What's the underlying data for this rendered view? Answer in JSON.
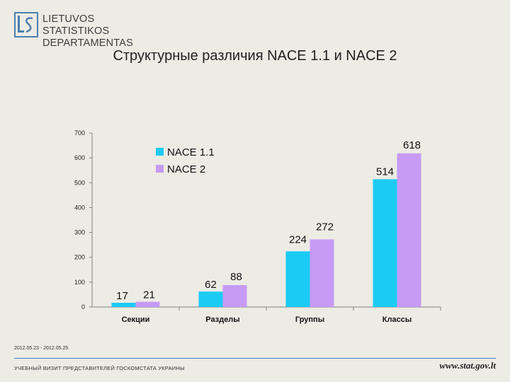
{
  "header": {
    "org_line1": "LIETUVOS STATISTIKOS",
    "org_line2": "DEPARTAMENTAS",
    "logo_icon": "ls-monogram-icon"
  },
  "slide_title": "Структурные различия NACE 1.1 и NACE 2",
  "chart_data": {
    "type": "bar",
    "title": "",
    "xlabel": "",
    "ylabel": "",
    "categories": [
      "Секции",
      "Разделы",
      "Группы",
      "Классы"
    ],
    "series": [
      {
        "name": "NACE 1.1",
        "values": [
          17,
          62,
          224,
          514
        ],
        "color": "#1ccbf3"
      },
      {
        "name": "NACE 2",
        "values": [
          21,
          88,
          272,
          618
        ],
        "color": "#c79af5"
      }
    ],
    "ylim": [
      0,
      700
    ],
    "yticks": [
      0,
      100,
      200,
      300,
      400,
      500,
      600,
      700
    ],
    "grid": false,
    "legend": "top-left",
    "data_labels": true
  },
  "footer": {
    "date_range": "2012.05.23 - 2012.05.25",
    "event": "УЧЕБНЫЙ ВИЗИТ ПРЕДСТАВИТЕЛЕЙ ГОСКОМСТАТА УКРАИНЫ",
    "website": "www.stat.gov.lt"
  },
  "colors": {
    "background": "#ecebe4",
    "footer_rule": "#4f7cc4"
  }
}
